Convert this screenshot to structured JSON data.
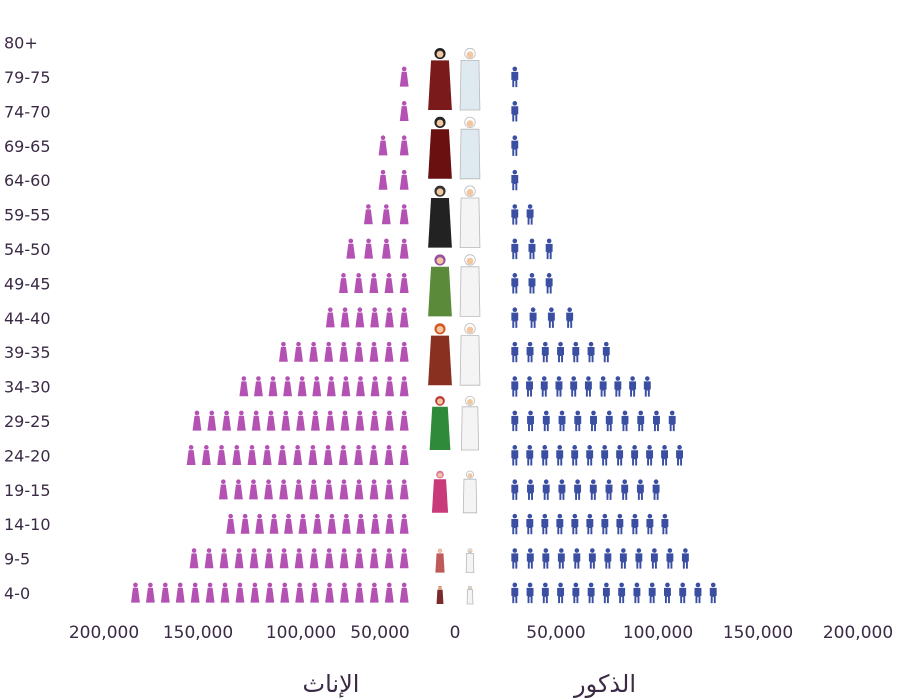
{
  "chart_data": {
    "type": "bar",
    "subtype": "population-pyramid-pictograph",
    "categories": [
      "4-0",
      "9-5",
      "14-10",
      "19-15",
      "24-20",
      "29-25",
      "34-30",
      "39-35",
      "44-40",
      "49-45",
      "54-50",
      "59-55",
      "64-60",
      "69-65",
      "74-70",
      "79-75",
      "80+"
    ],
    "series": [
      {
        "name": "الإناث",
        "side": "left",
        "color": "#b452b4",
        "values": [
          190000,
          150000,
          125000,
          130000,
          152000,
          148000,
          116000,
          89000,
          57000,
          48000,
          43000,
          31000,
          21000,
          21000,
          10000,
          10000,
          0
        ]
      },
      {
        "name": "الذكور",
        "side": "right",
        "color": "#3a4ea2",
        "values": [
          142000,
          123000,
          109000,
          103000,
          119000,
          114000,
          97000,
          69000,
          44000,
          30000,
          30000,
          17000,
          9000,
          9000,
          9000,
          9000,
          0
        ]
      }
    ],
    "x_ticks": [
      "200,000",
      "150,000",
      "100,000",
      "50,000",
      "0",
      "50,000",
      "100,000",
      "150,000",
      "200,000"
    ],
    "xlim": [
      -200000,
      200000
    ],
    "grid": false,
    "legend": "none",
    "xlabel_left": "الإناث",
    "xlabel_right": "الذكور"
  }
}
